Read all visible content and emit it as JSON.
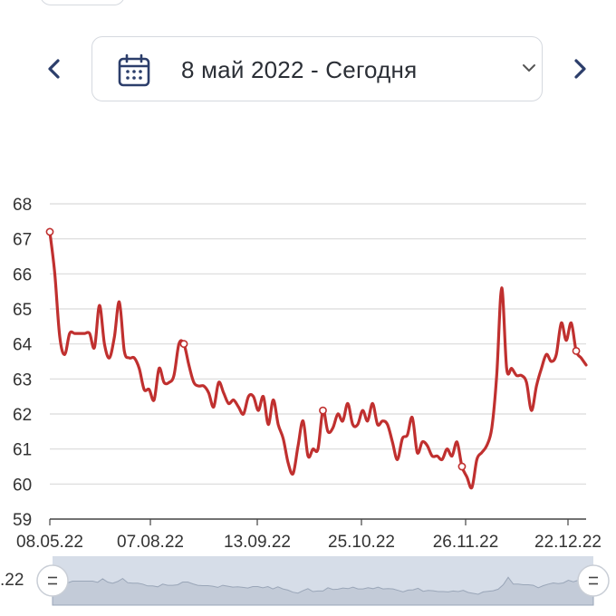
{
  "header": {
    "date_range": "8 май 2022 - Сегодня",
    "prev_icon": "chevron-left-icon",
    "next_icon": "chevron-right-icon",
    "calendar_icon": "calendar-icon",
    "dropdown_icon": "chevron-down-icon"
  },
  "colors": {
    "line": "#c0302f",
    "grid": "#d9d9d9",
    "navigator_fill": "#d6dde8",
    "accent": "#2c3e6b"
  },
  "chart_data": {
    "type": "line",
    "title": "",
    "xlabel": "",
    "ylabel": "",
    "ylim": [
      59,
      68
    ],
    "yticks": [
      59,
      60,
      61,
      62,
      63,
      64,
      65,
      66,
      67,
      68
    ],
    "x_tick_labels": [
      "08.05.22",
      "07.08.22",
      "13.09.22",
      "25.10.22",
      "26.11.22",
      "22.12.22"
    ],
    "navigator_label": ".22",
    "grid": true,
    "series": [
      {
        "values": [
          67.2,
          66.0,
          64.2,
          63.7,
          64.3,
          64.3,
          64.3,
          64.3,
          64.3,
          63.9,
          65.1,
          64.0,
          63.6,
          64.2,
          65.2,
          63.8,
          63.6,
          63.6,
          63.3,
          62.7,
          62.7,
          62.4,
          63.3,
          62.9,
          62.9,
          63.1,
          64.0,
          64.0,
          63.4,
          62.9,
          62.8,
          62.8,
          62.6,
          62.2,
          62.9,
          62.6,
          62.3,
          62.4,
          62.2,
          62.0,
          62.5,
          62.5,
          62.1,
          62.5,
          61.7,
          62.4,
          61.7,
          61.3,
          60.6,
          60.3,
          61.1,
          61.8,
          60.8,
          61.0,
          61.0,
          62.1,
          61.5,
          61.6,
          62.0,
          61.8,
          62.3,
          61.7,
          61.7,
          62.1,
          61.8,
          62.3,
          61.7,
          61.8,
          61.7,
          61.2,
          60.7,
          61.3,
          61.4,
          61.9,
          60.9,
          61.2,
          61.1,
          60.8,
          60.8,
          60.7,
          61.0,
          60.8,
          61.2,
          60.5,
          60.2,
          59.9,
          60.7,
          60.9,
          61.1,
          61.6,
          63.1,
          65.6,
          63.3,
          63.3,
          63.1,
          63.1,
          62.9,
          62.1,
          62.8,
          63.3,
          63.7,
          63.5,
          63.7,
          64.6,
          64.1,
          64.6,
          63.8,
          63.6,
          63.4
        ],
        "markers": [
          0,
          27,
          55,
          83,
          106,
          126
        ]
      }
    ]
  }
}
